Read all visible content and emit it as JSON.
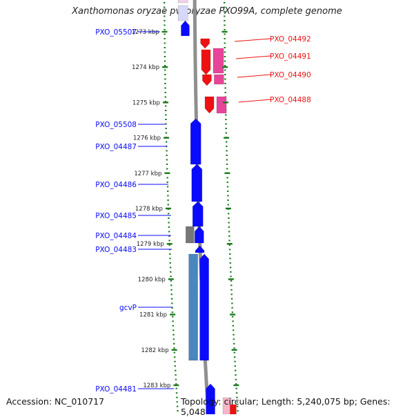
{
  "title": "Xanthomonas oryzae pv. oryzae PXO99A, complete genome",
  "accession": "Accession: NC_010717",
  "topology": "Topology: circular; Length: 5,240,075 bp; Genes: 5,048",
  "colors": {
    "forward": "#0a0aff",
    "reverse": "#ee1111",
    "rna": "#e8449a",
    "gray": "#777777",
    "steel": "#4a86c0",
    "tick": "#1a7a1a",
    "backbone": "#8f8f8f"
  },
  "ticks": [
    {
      "label": "1273 kbp",
      "kbp": 1273
    },
    {
      "label": "1274 kbp",
      "kbp": 1274
    },
    {
      "label": "1275 kbp",
      "kbp": 1275
    },
    {
      "label": "1276 kbp",
      "kbp": 1276
    },
    {
      "label": "1277 kbp",
      "kbp": 1277
    },
    {
      "label": "1278 kbp",
      "kbp": 1278
    },
    {
      "label": "1279 kbp",
      "kbp": 1279
    },
    {
      "label": "1280 kbp",
      "kbp": 1280
    },
    {
      "label": "1281 kbp",
      "kbp": 1281
    },
    {
      "label": "1282 kbp",
      "kbp": 1282
    },
    {
      "label": "1283 kbp",
      "kbp": 1283
    }
  ],
  "forward_genes": [
    {
      "label": "PXO_05507"
    },
    {
      "label": "PXO_05508"
    },
    {
      "label": "PXO_04487"
    },
    {
      "label": "PXO_04486"
    },
    {
      "label": "PXO_04485"
    },
    {
      "label": "PXO_04484"
    },
    {
      "label": "PXO_04483"
    },
    {
      "label": "gcvP"
    },
    {
      "label": "PXO_04481"
    }
  ],
  "reverse_genes": [
    {
      "label": "PXO_04492"
    },
    {
      "label": "PXO_04491"
    },
    {
      "label": "PXO_04490"
    },
    {
      "label": "PXO_04488"
    }
  ]
}
